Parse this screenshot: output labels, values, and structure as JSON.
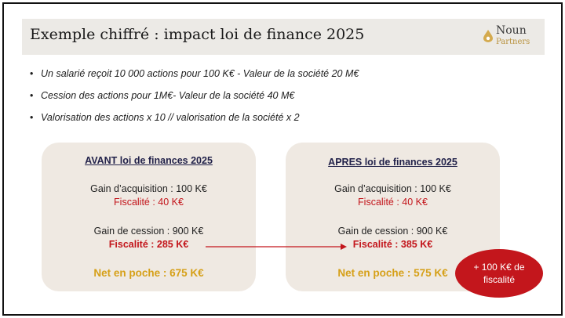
{
  "header": {
    "title": "Exemple chiffré : impact loi de finance 2025",
    "logo_name": "Noun",
    "logo_sub": "Partners"
  },
  "bullets": [
    "Un salarié reçoit 10 000 actions pour 100 K€ - Valeur de la société 20 M€",
    "Cession des actions pour 1M€- Valeur de la société  40 M€",
    "Valorisation des actions x 10  //  valorisation de la société x 2"
  ],
  "before": {
    "heading": "AVANT loi de finances 2025",
    "acq_gain": "Gain d’acquisition : 100 K€",
    "acq_tax": "Fiscalité : 40 K€",
    "sale_gain": "Gain de cession : 900 K€",
    "sale_tax": "Fiscalité : 285 K€",
    "net": "Net en poche  : 675 K€"
  },
  "after": {
    "heading": "APRES loi de finances 2025",
    "acq_gain": "Gain d’acquisition : 100 K€",
    "acq_tax": "Fiscalité : 40 K€",
    "sale_gain": "Gain de cession : 900 K€",
    "sale_tax": "Fiscalité : 385 K€",
    "net": "Net en poche  : 575 K€"
  },
  "badge": "+ 100 K€ de fiscalité",
  "colors": {
    "accent_red": "#c3161c",
    "gold": "#d6a018",
    "box_bg": "#efe9e2",
    "header_bg": "#eceae6"
  }
}
